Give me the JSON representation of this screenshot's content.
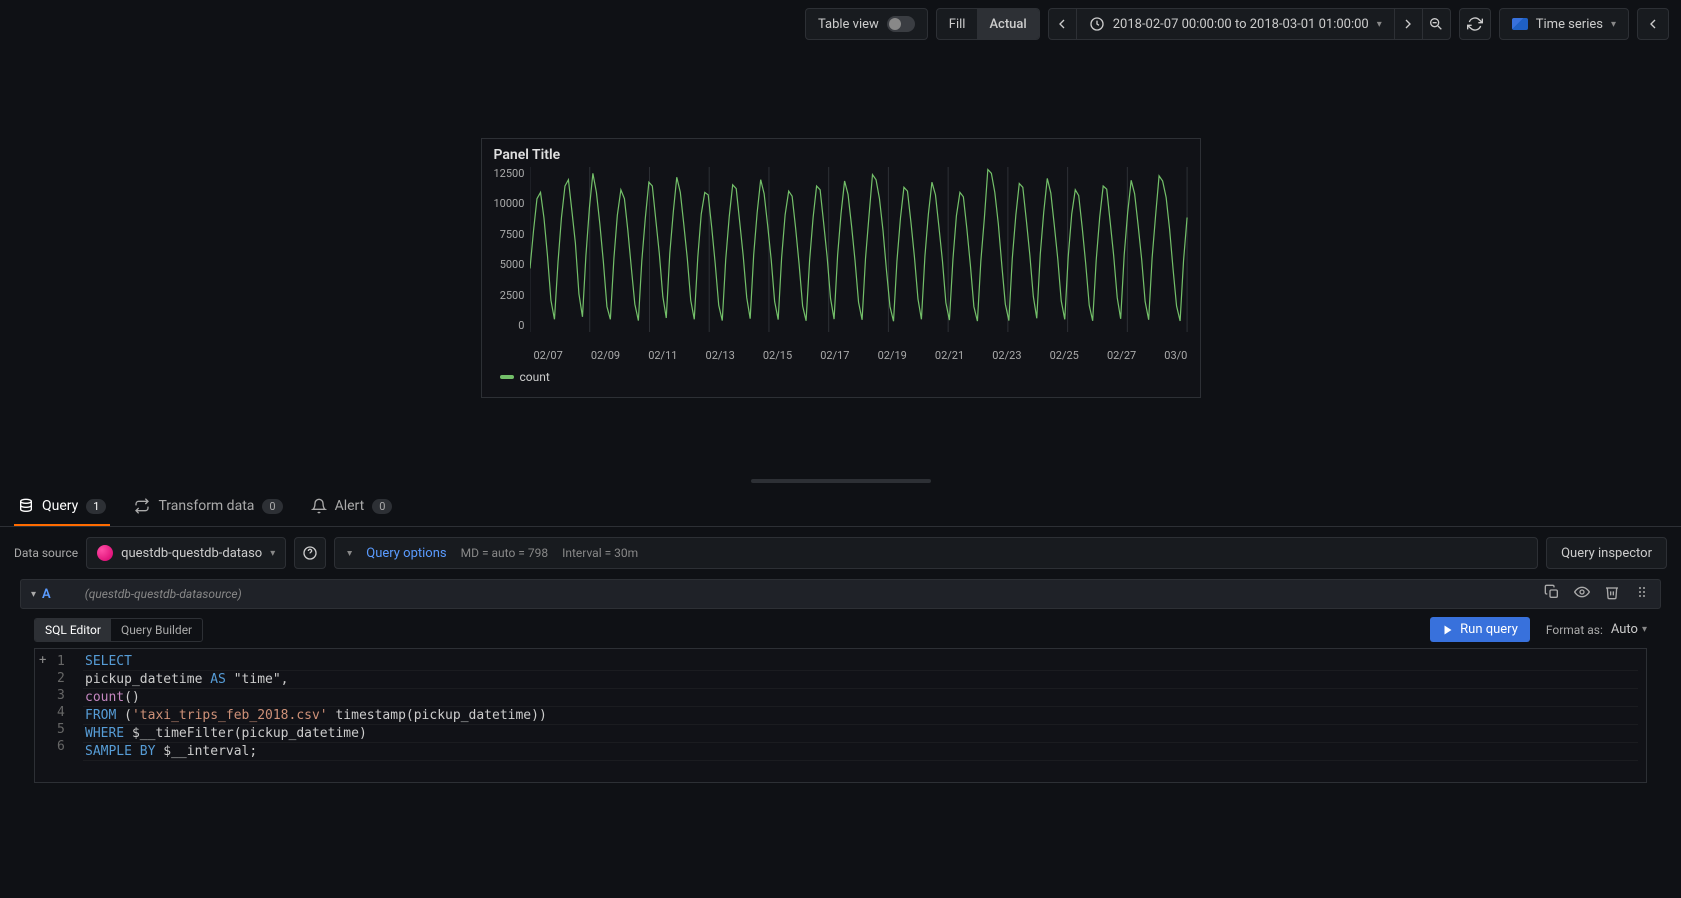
{
  "toolbar": {
    "tableView": "Table view",
    "fill": "Fill",
    "actual": "Actual",
    "timeRange": "2018-02-07 00:00:00 to 2018-03-01 01:00:00",
    "panelType": "Time series"
  },
  "panel": {
    "title": "Panel Title",
    "yTicks": [
      "12500",
      "10000",
      "7500",
      "5000",
      "2500",
      "0"
    ],
    "xTicks": [
      "02/07",
      "02/09",
      "02/11",
      "02/13",
      "02/15",
      "02/17",
      "02/19",
      "02/21",
      "02/23",
      "02/25",
      "02/27",
      "03/0"
    ],
    "legend": "count",
    "seriesColor": "#73bf69",
    "gridColor": "#2d3035",
    "ymax": 13000,
    "data": [
      5000,
      8000,
      10500,
      11000,
      9000,
      6000,
      2500,
      1000,
      5500,
      9000,
      11500,
      12000,
      9500,
      7000,
      3000,
      1200,
      6000,
      9800,
      12500,
      11000,
      8500,
      5500,
      2000,
      1000,
      5800,
      9200,
      11200,
      10500,
      8000,
      5000,
      2200,
      900,
      5600,
      9000,
      11800,
      11500,
      8800,
      6200,
      2800,
      1100,
      6200,
      9500,
      12200,
      11000,
      8500,
      5800,
      2500,
      1000,
      5900,
      9300,
      11000,
      10800,
      8200,
      5400,
      2100,
      900,
      5700,
      9100,
      11600,
      11300,
      8700,
      6000,
      2700,
      1050,
      6100,
      9400,
      12000,
      10900,
      8400,
      5700,
      2400,
      980,
      5850,
      9250,
      11100,
      10700,
      8150,
      5350,
      2050,
      880,
      5650,
      9050,
      11500,
      11200,
      8650,
      5950,
      2650,
      1020,
      6050,
      9350,
      11900,
      10850,
      8350,
      5650,
      2350,
      960,
      5800,
      9200,
      12400,
      12000,
      10500,
      8000,
      4800,
      2000,
      850,
      5600,
      9000,
      11400,
      11100,
      8600,
      5900,
      2600,
      1000,
      6000,
      9300,
      11800,
      10800,
      8300,
      5600,
      2300,
      940,
      5750,
      9150,
      11000,
      10650,
      8100,
      5300,
      2000,
      860,
      5600,
      9000,
      12800,
      12500,
      11000,
      8500,
      5200,
      2200,
      900,
      5800,
      9200,
      11700,
      11400,
      8800,
      6100,
      2800,
      1080,
      6150,
      9450,
      12100,
      10950,
      8450,
      5750,
      2450,
      990,
      5900,
      9300,
      11200,
      10750,
      8200,
      5400,
      2100,
      880,
      5650,
      9070,
      11500,
      11250,
      8700,
      6000,
      2700,
      1040,
      6080,
      9380,
      11950,
      10900,
      8400,
      5700,
      2400,
      970,
      5820,
      9220,
      12300,
      11900,
      10600,
      8100,
      4900,
      2050,
      870,
      5620,
      9020
    ]
  },
  "tabs": {
    "query": "Query",
    "queryCount": "1",
    "transform": "Transform data",
    "transformCount": "0",
    "alert": "Alert",
    "alertCount": "0"
  },
  "ds": {
    "label": "Data source",
    "name": "questdb-questdb-dataso",
    "fullName": "(questdb-questdb-datasource)"
  },
  "queryOptions": {
    "label": "Query options",
    "md": "MD = auto = 798",
    "interval": "Interval = 30m"
  },
  "inspector": "Query inspector",
  "queryRow": {
    "ref": "A"
  },
  "editorTabs": {
    "sql": "SQL Editor",
    "builder": "Query Builder"
  },
  "runQuery": "Run query",
  "formatAs": "Format as:",
  "formatVal": "Auto",
  "code": {
    "lines": [
      "1",
      "2",
      "3",
      "4",
      "5",
      "6"
    ],
    "l1": {
      "select": "SELECT"
    },
    "l2": {
      "text": "pickup_datetime ",
      "as": "AS",
      "rest": " \"time\","
    },
    "l3": {
      "count": "count",
      "rest": "()"
    },
    "l4": {
      "from": "FROM",
      "paren": " (",
      "str": "'taxi_trips_feb_2018.csv'",
      "rest": " timestamp(pickup_datetime))"
    },
    "l5": {
      "where": "WHERE",
      "rest": " $__timeFilter(pickup_datetime)"
    },
    "l6": {
      "sample": "SAMPLE",
      "by": "BY",
      "rest": " $__interval;"
    }
  }
}
